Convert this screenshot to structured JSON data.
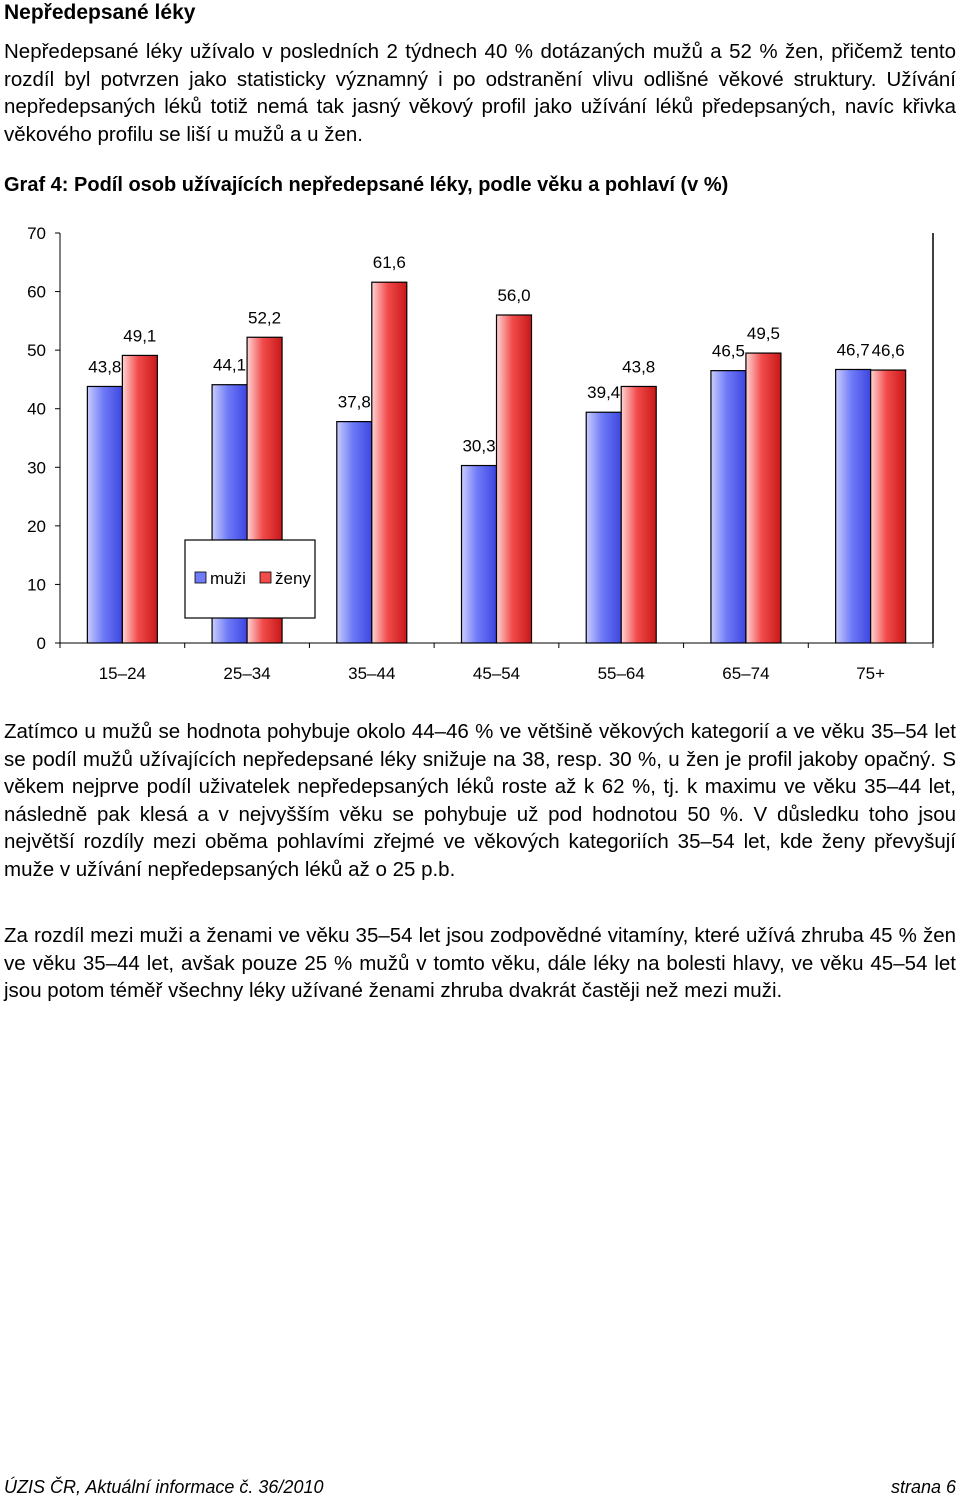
{
  "heading": "Nepředepsané léky",
  "paragraphs": [
    "Nepředepsané léky užívalo v posledních 2 týdnech 40 % dotázaných mužů a 52 % žen, přičemž tento rozdíl byl potvrzen jako statisticky významný i po odstranění vlivu odlišné věkové struktury. Užívání nepředepsaných léků totiž nemá tak jasný věkový profil jako užívání léků předepsaných, navíc křivka věkového profilu se liší u mužů a u žen.",
    "Zatímco u mužů se hodnota pohybuje okolo 44–46 % ve většině věkových kategorií a ve věku 35–54 let se podíl mužů užívajících nepředepsané léky snižuje na 38, resp. 30 %, u žen je profil jakoby opačný. S věkem nejprve podíl uživatelek nepředepsaných léků roste až k 62 %, tj. k maximu ve věku 35–44 let, následně pak klesá a v nejvyšším věku se pohybuje už pod hodnotou 50 %. V důsledku toho jsou největší rozdíly mezi oběma pohlavími zřejmé ve věkových kategoriích 35–54 let, kde ženy převyšují muže v užívání nepředepsaných léků až o 25 p.b.",
    "Za rozdíl mezi muži a ženami ve věku 35–54 let jsou zodpovědné vitamíny, které užívá zhruba 45 % žen ve věku 35–44 let, avšak pouze 25 % mužů v tomto věku, dále léky na bolesti hlavy, ve věku 45–54 let jsou potom téměř všechny léky užívané ženami zhruba dvakrát častěji než mezi muži."
  ],
  "chart_data": {
    "type": "bar",
    "title": "Graf 4: Podíl osob užívajících nepředepsané léky, podle věku a pohlaví (v %)",
    "categories": [
      "15–24",
      "25–34",
      "35–44",
      "45–54",
      "55–64",
      "65–74",
      "75+"
    ],
    "series": [
      {
        "name": "muži",
        "values": [
          43.8,
          44.1,
          37.8,
          30.3,
          39.4,
          46.5,
          46.7
        ],
        "labels": [
          "43,8",
          "44,1",
          "37,8",
          "30,3",
          "39,4",
          "46,5",
          "46,7"
        ],
        "color": "#6f7bf7"
      },
      {
        "name": "ženy",
        "values": [
          49.1,
          52.2,
          61.6,
          56.0,
          43.8,
          49.5,
          46.6
        ],
        "labels": [
          "49,1",
          "52,2",
          "61,6",
          "56,0",
          "43,8",
          "49,5",
          "46,6"
        ],
        "color": "#f24b4b"
      }
    ],
    "ylim": [
      0,
      70
    ],
    "yticks": [
      "0",
      "10",
      "20",
      "30",
      "40",
      "50",
      "60",
      "70"
    ],
    "grid": false,
    "legend_position": "lower-left inside"
  },
  "footer": {
    "left": "ÚZIS ČR, Aktuální informace č. 36/2010",
    "right": "strana 6"
  }
}
